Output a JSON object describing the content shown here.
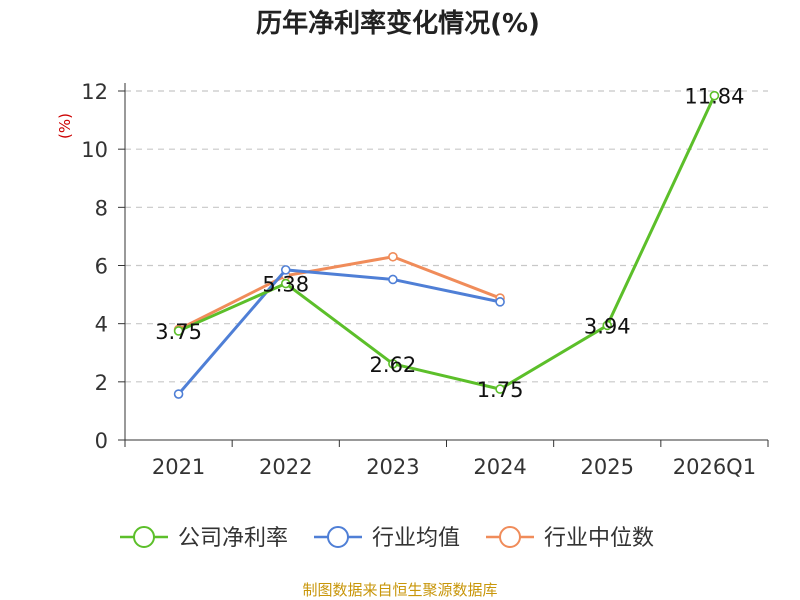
{
  "chart_data": {
    "type": "line",
    "title": "历年净利率变化情况(%)",
    "ylabel": "(%)",
    "xlabel": "",
    "categories": [
      "2021",
      "2022",
      "2023",
      "2024",
      "2025",
      "2026Q1"
    ],
    "ylim": [
      0,
      12
    ],
    "yticks": [
      0,
      2,
      4,
      6,
      8,
      10,
      12
    ],
    "grid": true,
    "legend_position": "bottom",
    "series": [
      {
        "name": "公司净利率",
        "color": "#5cbf2a",
        "values": [
          3.75,
          5.38,
          2.62,
          1.75,
          3.94,
          11.84
        ],
        "labels": [
          "3.75",
          "5.38",
          "2.62",
          "1.75",
          "3.94",
          "11.84"
        ]
      },
      {
        "name": "行业均值",
        "color": "#4f7fd6",
        "values": [
          1.58,
          5.85,
          5.52,
          4.75,
          null,
          null
        ]
      },
      {
        "name": "行业中位数",
        "color": "#f08c5a",
        "values": [
          3.8,
          5.65,
          6.3,
          4.88,
          null,
          null
        ]
      }
    ]
  },
  "source": "制图数据来自恒生聚源数据库"
}
